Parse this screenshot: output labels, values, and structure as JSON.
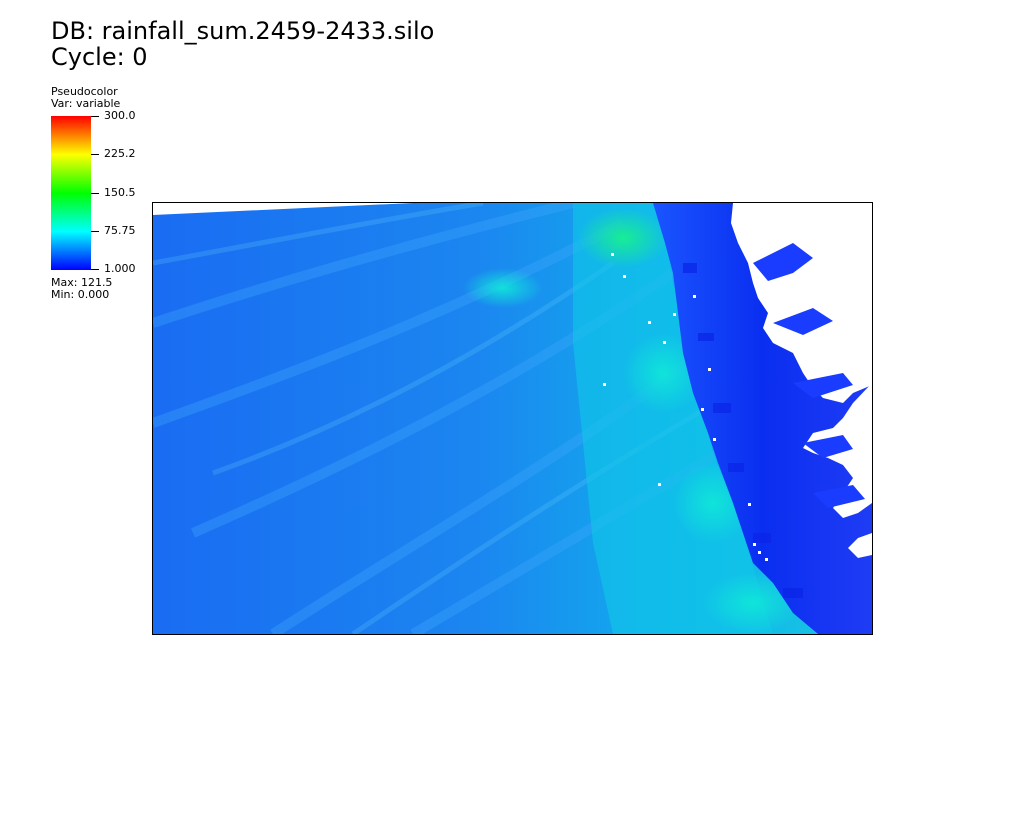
{
  "header": {
    "db_line": "DB: rainfall_sum.2459-2433.silo",
    "cycle_line": "Cycle: 0"
  },
  "legend": {
    "plot_type": "Pseudocolor",
    "variable": "Var: variable",
    "ticks": [
      "300.0",
      "225.2",
      "150.5",
      "75.75",
      "1.000"
    ],
    "max_label": "Max:  121.5",
    "min_label": "Min:  0.000",
    "colormap": [
      "#0000ff",
      "#00ffff",
      "#00ff00",
      "#ffff00",
      "#ff0000"
    ]
  },
  "plot": {
    "background_color": "#ffffff",
    "land_color": "#2a48ff",
    "ocean_color": "#1c7df0",
    "highlight_color": "#00e6c8"
  }
}
